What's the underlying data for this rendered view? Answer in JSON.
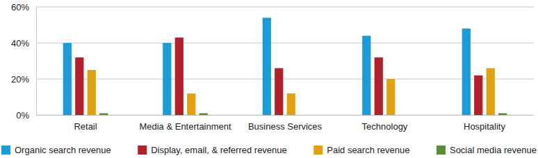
{
  "chart_data": {
    "type": "bar",
    "categories": [
      "Retail",
      "Media & Entertainment",
      "Business Services",
      "Technology",
      "Hospitality"
    ],
    "series": [
      {
        "name": "Organic search revenue",
        "color": "#1b9bd7",
        "values": [
          40,
          40,
          54,
          44,
          48
        ]
      },
      {
        "name": "Display, email, & referred revenue",
        "color": "#b2212b",
        "values": [
          32,
          43,
          26,
          32,
          22
        ]
      },
      {
        "name": "Paid search revenue",
        "color": "#e0a20e",
        "values": [
          25,
          12,
          12,
          20,
          26
        ]
      },
      {
        "name": "Social media revenue",
        "color": "#5b8c3c",
        "values": [
          1,
          1,
          0,
          0,
          1
        ]
      }
    ],
    "ylim": [
      0,
      60
    ],
    "yticks": [
      {
        "value": 0,
        "label": "0%"
      },
      {
        "value": 20,
        "label": "20%"
      },
      {
        "value": 40,
        "label": "40%"
      },
      {
        "value": 60,
        "label": "60%"
      }
    ],
    "grid": true,
    "legend": "bottom"
  }
}
